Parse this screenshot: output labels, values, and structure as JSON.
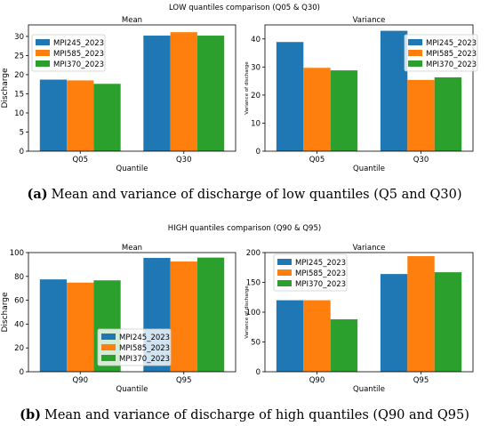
{
  "colors": {
    "MPI245_2023": "#1f77b4",
    "MPI585_2023": "#ff7f0e",
    "MPI370_2023": "#2ca02c"
  },
  "panels": [
    {
      "suptitle": "LOW quantiles comparison (Q05 & Q30)",
      "caption_letter": "(a)",
      "caption_text": "Mean and variance of discharge of low quantiles (Q5 and Q30)"
    },
    {
      "suptitle": "HIGH quantiles comparison (Q90 & Q95)",
      "caption_letter": "(b)",
      "caption_text": "Mean and variance of discharge of high quantiles (Q90 and Q95)"
    }
  ],
  "chart_data": [
    {
      "type": "bar",
      "title": "Mean",
      "xlabel": "Quantile",
      "ylabel": "Discharge",
      "categories": [
        "Q05",
        "Q30"
      ],
      "ylim": [
        0,
        33
      ],
      "yticks": [
        0,
        5,
        10,
        15,
        20,
        25,
        30
      ],
      "legend": "top-left",
      "series": [
        {
          "name": "MPI245_2023",
          "values": [
            18.7,
            30.2
          ]
        },
        {
          "name": "MPI585_2023",
          "values": [
            18.5,
            31.1
          ]
        },
        {
          "name": "MPI370_2023",
          "values": [
            17.6,
            30.2
          ]
        }
      ]
    },
    {
      "type": "bar",
      "title": "Variance",
      "xlabel": "Quantile",
      "ylabel": "Variance of discharge",
      "categories": [
        "Q05",
        "Q30"
      ],
      "ylim": [
        0,
        45
      ],
      "yticks": [
        0,
        10,
        20,
        30,
        40
      ],
      "legend": "top-right",
      "series": [
        {
          "name": "MPI245_2023",
          "values": [
            38.9,
            42.9
          ]
        },
        {
          "name": "MPI585_2023",
          "values": [
            29.7,
            25.4
          ]
        },
        {
          "name": "MPI370_2023",
          "values": [
            28.8,
            26.3
          ]
        }
      ]
    },
    {
      "type": "bar",
      "title": "Mean",
      "xlabel": "Quantile",
      "ylabel": "Discharge",
      "categories": [
        "Q90",
        "Q95"
      ],
      "ylim": [
        0,
        100
      ],
      "yticks": [
        0,
        20,
        40,
        60,
        80,
        100
      ],
      "legend": "lower-center",
      "series": [
        {
          "name": "MPI245_2023",
          "values": [
            77.5,
            95.5
          ]
        },
        {
          "name": "MPI585_2023",
          "values": [
            74.8,
            92.5
          ]
        },
        {
          "name": "MPI370_2023",
          "values": [
            76.7,
            95.8
          ]
        }
      ]
    },
    {
      "type": "bar",
      "title": "Variance",
      "xlabel": "Quantile",
      "ylabel": "Variance of discharge",
      "categories": [
        "Q90",
        "Q95"
      ],
      "ylim": [
        0,
        200
      ],
      "yticks": [
        0,
        50,
        100,
        150,
        200
      ],
      "legend": "top-left",
      "series": [
        {
          "name": "MPI245_2023",
          "values": [
            120,
            164
          ]
        },
        {
          "name": "MPI585_2023",
          "values": [
            120,
            194
          ]
        },
        {
          "name": "MPI370_2023",
          "values": [
            88,
            167
          ]
        }
      ]
    }
  ]
}
